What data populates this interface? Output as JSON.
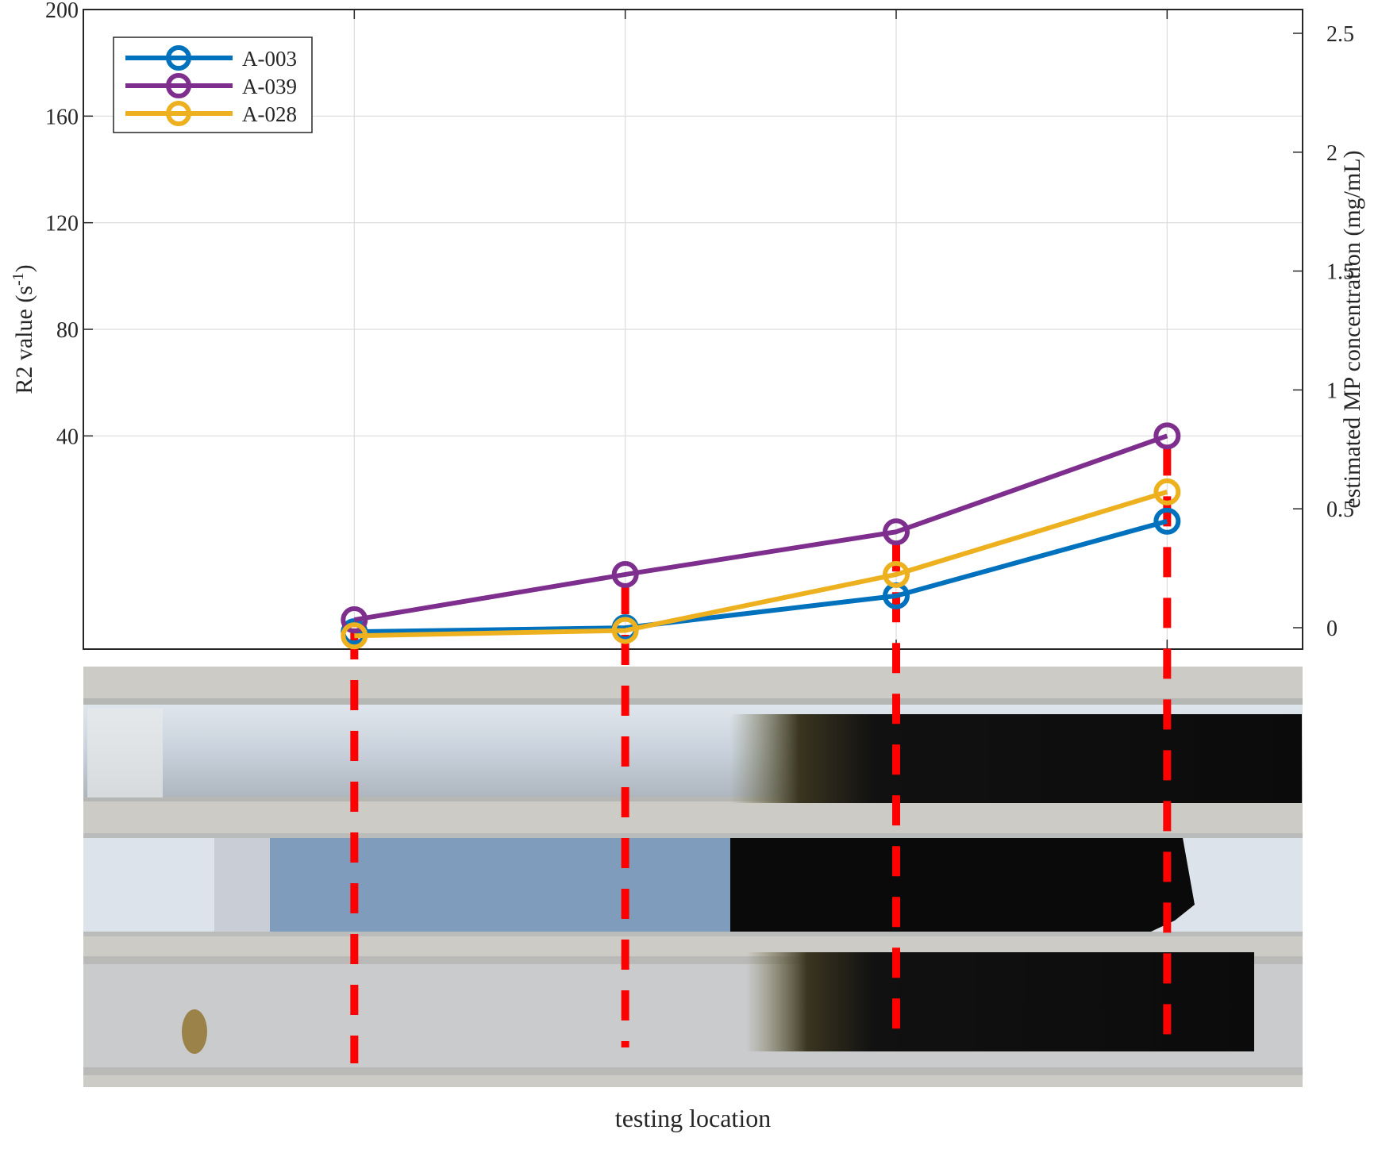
{
  "chart_data": {
    "type": "line",
    "x": [
      1,
      2,
      3,
      4
    ],
    "xlabel": "testing location",
    "ylabel": "R2 value (s",
    "ylabel_sup": "-1",
    "ylabel_close": ")",
    "ylim": [
      -40,
      200
    ],
    "yticks": [
      40,
      80,
      120,
      160,
      200
    ],
    "ytick_labels": [
      "40",
      "80",
      "120",
      "160",
      "200"
    ],
    "y2label": "estimated MP concentration (mg/mL)",
    "y2lim": [
      -0.09,
      2.6
    ],
    "y2ticks": [
      0,
      0.5,
      1,
      1.5,
      2,
      2.5
    ],
    "y2tick_labels": [
      "0",
      "0.5",
      "1",
      "1.5",
      "2",
      "2.5"
    ],
    "xlim": [
      0,
      4.5
    ],
    "grid": true,
    "legend_position": "top-left",
    "series": [
      {
        "name": "A-003",
        "color": "#0072BD",
        "values": [
          -33.5,
          -32,
          -20,
          8
        ]
      },
      {
        "name": "A-039",
        "color": "#7E2F8E",
        "values": [
          -29,
          -12,
          4,
          40
        ]
      },
      {
        "name": "A-028",
        "color": "#EDB120",
        "values": [
          -35,
          -33,
          -12,
          19
        ]
      }
    ],
    "photo_panel": {
      "kind": "photograph of three glass tubes with dark magnetic particle fill",
      "marker_color": "#FF0000"
    }
  }
}
